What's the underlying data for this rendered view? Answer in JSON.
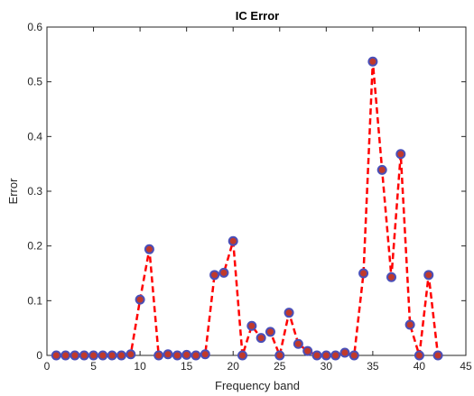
{
  "chart_data": {
    "type": "line",
    "title": "IC Error",
    "xlabel": "Frequency band",
    "ylabel": "Error",
    "xlim": [
      0,
      45
    ],
    "ylim": [
      0,
      0.6
    ],
    "xticks": [
      "0",
      "5",
      "10",
      "15",
      "20",
      "25",
      "30",
      "35",
      "40",
      "45"
    ],
    "yticks": [
      "0",
      "0.1",
      "0.2",
      "0.3",
      "0.4",
      "0.5",
      "0.6"
    ],
    "grid": false,
    "line_style": "dashed",
    "line_color": "#ff0000",
    "marker_face_color": "#c0392b",
    "marker_edge_color": "#4a4fb8",
    "x": [
      1,
      2,
      3,
      4,
      5,
      6,
      7,
      8,
      9,
      10,
      11,
      12,
      13,
      14,
      15,
      16,
      17,
      18,
      19,
      20,
      21,
      22,
      23,
      24,
      25,
      26,
      27,
      28,
      29,
      30,
      31,
      32,
      33,
      34,
      35,
      36,
      37,
      38,
      39,
      40,
      41,
      42
    ],
    "y": [
      0,
      0,
      0,
      0,
      0,
      0,
      0,
      0,
      0.002,
      0.102,
      0.194,
      0,
      0.002,
      0,
      0.001,
      0,
      0.002,
      0.147,
      0.151,
      0.209,
      0,
      0.054,
      0.032,
      0.043,
      0,
      0.078,
      0.021,
      0.008,
      0,
      0,
      0,
      0.005,
      0,
      0.15,
      0.537,
      0.339,
      0.143,
      0.368,
      0.056,
      0,
      0.147,
      0
    ]
  }
}
